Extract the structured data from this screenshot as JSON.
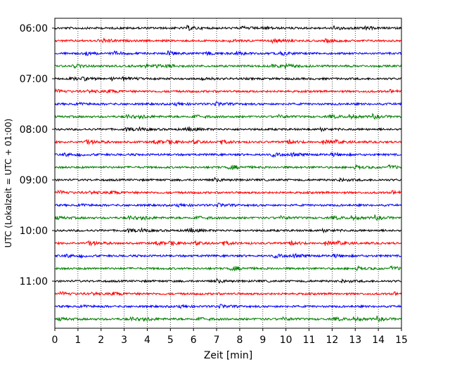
{
  "chart_data": {
    "type": "line",
    "title": "",
    "xlabel": "Zeit  [min]",
    "ylabel": "UTC (Lokalzeit = UTC + 01:00)",
    "xlim": [
      0,
      15
    ],
    "xticks": [
      "0",
      "1",
      "2",
      "3",
      "4",
      "5",
      "6",
      "7",
      "8",
      "9",
      "10",
      "11",
      "12",
      "13",
      "14",
      "15"
    ],
    "ytick_labels": [
      "06:00",
      "07:00",
      "08:00",
      "09:00",
      "10:00",
      "11:00"
    ],
    "grid": "vertical dotted",
    "trace_colors": [
      "#000000",
      "#ff0000",
      "#0000ff",
      "#008000"
    ],
    "traces_per_hour": 4,
    "trace_count": 24,
    "start_time": "06:00",
    "trace_interval_min": 15
  }
}
